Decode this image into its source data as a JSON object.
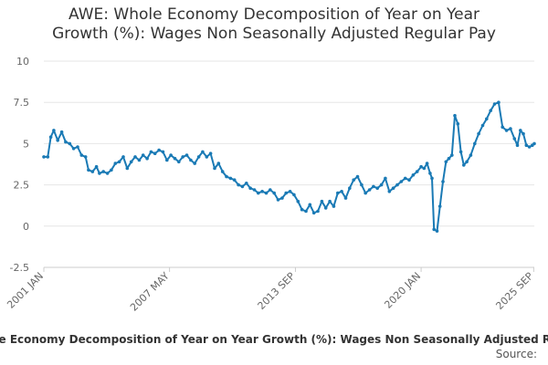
{
  "chart_data": {
    "type": "line",
    "title_lines": [
      "AWE: Whole Economy Decomposition of Year on Year",
      "Growth (%): Wages Non Seasonally Adjusted Regular Pay"
    ],
    "xlabel": "",
    "ylabel": "",
    "ylim": [
      -2.5,
      10
    ],
    "yticks": [
      "10",
      "7.5",
      "5",
      "2.5",
      "0",
      "-2.5"
    ],
    "ytick_values": [
      10,
      7.5,
      5,
      2.5,
      0,
      -2.5
    ],
    "xlim": [
      2001.0,
      2025.7
    ],
    "xticks": [
      {
        "label": "2001 JAN",
        "x": 2001.0
      },
      {
        "label": "2007 MAY",
        "x": 2007.33
      },
      {
        "label": "2013 SEP",
        "x": 2013.67
      },
      {
        "label": "2020 JAN",
        "x": 2020.0
      },
      {
        "label": "2025 SEP",
        "x": 2025.67
      }
    ],
    "grid": true,
    "legend_text": "AWE: Whole Economy Decomposition of Year on Year Growth (%): Wages Non Seasonally Adjusted Regular Pay",
    "source_label": "Source:",
    "colors": {
      "line": "#1a7ab5",
      "grid": "#e6e6e6",
      "axis": "#cccccc"
    },
    "series": [
      {
        "name": "Wages Non Seasonally Adjusted Regular Pay",
        "points": [
          [
            2001.0,
            4.2
          ],
          [
            2001.2,
            4.2
          ],
          [
            2001.35,
            5.4
          ],
          [
            2001.5,
            5.8
          ],
          [
            2001.7,
            5.2
          ],
          [
            2001.9,
            5.7
          ],
          [
            2002.1,
            5.1
          ],
          [
            2002.3,
            5.0
          ],
          [
            2002.5,
            4.7
          ],
          [
            2002.7,
            4.8
          ],
          [
            2002.9,
            4.3
          ],
          [
            2003.1,
            4.2
          ],
          [
            2003.25,
            3.4
          ],
          [
            2003.45,
            3.3
          ],
          [
            2003.65,
            3.6
          ],
          [
            2003.8,
            3.2
          ],
          [
            2004.0,
            3.3
          ],
          [
            2004.2,
            3.2
          ],
          [
            2004.4,
            3.4
          ],
          [
            2004.6,
            3.8
          ],
          [
            2004.8,
            3.9
          ],
          [
            2005.0,
            4.2
          ],
          [
            2005.2,
            3.5
          ],
          [
            2005.4,
            3.9
          ],
          [
            2005.6,
            4.2
          ],
          [
            2005.8,
            4.0
          ],
          [
            2006.0,
            4.3
          ],
          [
            2006.2,
            4.1
          ],
          [
            2006.4,
            4.5
          ],
          [
            2006.6,
            4.4
          ],
          [
            2006.8,
            4.6
          ],
          [
            2007.0,
            4.5
          ],
          [
            2007.2,
            4.0
          ],
          [
            2007.4,
            4.3
          ],
          [
            2007.6,
            4.1
          ],
          [
            2007.8,
            3.9
          ],
          [
            2008.0,
            4.2
          ],
          [
            2008.2,
            4.3
          ],
          [
            2008.4,
            4.0
          ],
          [
            2008.6,
            3.8
          ],
          [
            2008.8,
            4.2
          ],
          [
            2009.0,
            4.5
          ],
          [
            2009.2,
            4.2
          ],
          [
            2009.4,
            4.4
          ],
          [
            2009.6,
            3.5
          ],
          [
            2009.8,
            3.8
          ],
          [
            2010.0,
            3.3
          ],
          [
            2010.2,
            3.0
          ],
          [
            2010.4,
            2.9
          ],
          [
            2010.6,
            2.8
          ],
          [
            2010.8,
            2.5
          ],
          [
            2011.0,
            2.4
          ],
          [
            2011.2,
            2.6
          ],
          [
            2011.4,
            2.3
          ],
          [
            2011.6,
            2.2
          ],
          [
            2011.8,
            2.0
          ],
          [
            2012.0,
            2.1
          ],
          [
            2012.2,
            2.0
          ],
          [
            2012.4,
            2.2
          ],
          [
            2012.6,
            2.0
          ],
          [
            2012.8,
            1.6
          ],
          [
            2013.0,
            1.7
          ],
          [
            2013.2,
            2.0
          ],
          [
            2013.4,
            2.1
          ],
          [
            2013.6,
            1.9
          ],
          [
            2013.8,
            1.5
          ],
          [
            2014.0,
            1.0
          ],
          [
            2014.2,
            0.9
          ],
          [
            2014.4,
            1.3
          ],
          [
            2014.6,
            0.8
          ],
          [
            2014.8,
            0.9
          ],
          [
            2015.0,
            1.5
          ],
          [
            2015.2,
            1.1
          ],
          [
            2015.4,
            1.5
          ],
          [
            2015.6,
            1.2
          ],
          [
            2015.8,
            2.0
          ],
          [
            2016.0,
            2.1
          ],
          [
            2016.2,
            1.7
          ],
          [
            2016.4,
            2.3
          ],
          [
            2016.6,
            2.8
          ],
          [
            2016.8,
            3.0
          ],
          [
            2017.0,
            2.5
          ],
          [
            2017.2,
            2.0
          ],
          [
            2017.4,
            2.2
          ],
          [
            2017.6,
            2.4
          ],
          [
            2017.8,
            2.3
          ],
          [
            2018.0,
            2.5
          ],
          [
            2018.2,
            2.9
          ],
          [
            2018.4,
            2.1
          ],
          [
            2018.6,
            2.3
          ],
          [
            2018.8,
            2.5
          ],
          [
            2019.0,
            2.7
          ],
          [
            2019.2,
            2.9
          ],
          [
            2019.4,
            2.8
          ],
          [
            2019.6,
            3.1
          ],
          [
            2019.8,
            3.3
          ],
          [
            2020.0,
            3.6
          ],
          [
            2020.15,
            3.5
          ],
          [
            2020.3,
            3.8
          ],
          [
            2020.45,
            3.2
          ],
          [
            2020.55,
            2.9
          ],
          [
            2020.65,
            -0.2
          ],
          [
            2020.8,
            -0.3
          ],
          [
            2020.95,
            1.2
          ],
          [
            2021.1,
            2.7
          ],
          [
            2021.25,
            3.9
          ],
          [
            2021.4,
            4.1
          ],
          [
            2021.55,
            4.3
          ],
          [
            2021.7,
            6.7
          ],
          [
            2021.85,
            6.2
          ],
          [
            2022.0,
            4.5
          ],
          [
            2022.15,
            3.7
          ],
          [
            2022.3,
            3.9
          ],
          [
            2022.5,
            4.3
          ],
          [
            2022.7,
            5.0
          ],
          [
            2022.9,
            5.6
          ],
          [
            2023.1,
            6.1
          ],
          [
            2023.3,
            6.5
          ],
          [
            2023.5,
            7.0
          ],
          [
            2023.7,
            7.4
          ],
          [
            2023.9,
            7.5
          ],
          [
            2024.1,
            6.0
          ],
          [
            2024.3,
            5.8
          ],
          [
            2024.5,
            5.9
          ],
          [
            2024.7,
            5.3
          ],
          [
            2024.85,
            4.9
          ],
          [
            2025.0,
            5.8
          ],
          [
            2025.15,
            5.6
          ],
          [
            2025.3,
            4.9
          ],
          [
            2025.45,
            4.8
          ],
          [
            2025.6,
            4.9
          ],
          [
            2025.7,
            5.0
          ]
        ]
      }
    ]
  }
}
